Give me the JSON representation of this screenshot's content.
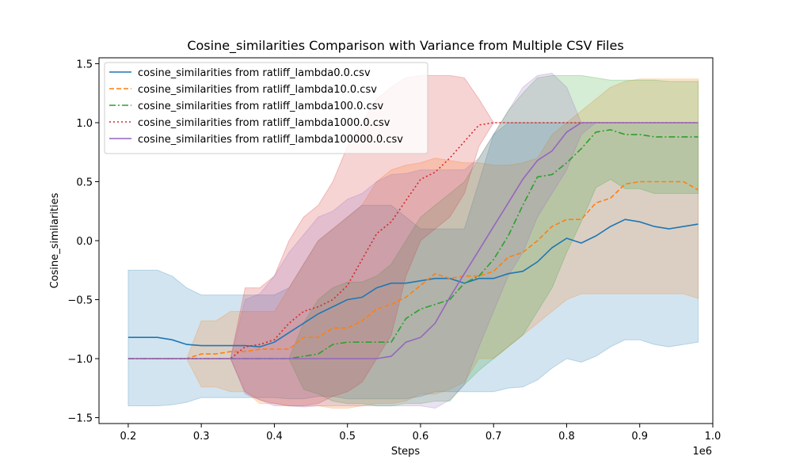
{
  "chart_data": {
    "type": "line",
    "title": "Cosine_similarities Comparison with Variance from Multiple CSV Files",
    "xlabel": "Steps",
    "ylabel": "Cosine_similarities",
    "x_offset_label": "1e6",
    "xlim": [
      0.16,
      1.0
    ],
    "ylim": [
      -1.55,
      1.55
    ],
    "x_ticks": [
      "0.2",
      "0.3",
      "0.4",
      "0.5",
      "0.6",
      "0.7",
      "0.8",
      "0.9",
      "1.0"
    ],
    "y_ticks": [
      "−1.5",
      "−1.0",
      "−0.5",
      "0.0",
      "0.5",
      "1.0",
      "1.5"
    ],
    "legend_position": "top-left",
    "grid": false,
    "x": [
      0.2,
      0.22,
      0.24,
      0.26,
      0.28,
      0.3,
      0.32,
      0.34,
      0.36,
      0.38,
      0.4,
      0.42,
      0.44,
      0.46,
      0.48,
      0.5,
      0.52,
      0.54,
      0.56,
      0.58,
      0.6,
      0.62,
      0.64,
      0.66,
      0.68,
      0.7,
      0.72,
      0.74,
      0.76,
      0.78,
      0.8,
      0.82,
      0.84,
      0.86,
      0.88,
      0.9,
      0.92,
      0.94,
      0.96,
      0.98
    ],
    "series": [
      {
        "name": "cosine_similarities from ratliff_lambda0.0.csv",
        "color": "#1f77b4",
        "dash": "solid",
        "values": [
          -0.82,
          -0.82,
          -0.82,
          -0.84,
          -0.88,
          -0.89,
          -0.89,
          -0.89,
          -0.89,
          -0.9,
          -0.86,
          -0.78,
          -0.7,
          -0.62,
          -0.56,
          -0.5,
          -0.48,
          -0.4,
          -0.36,
          -0.36,
          -0.34,
          -0.32,
          -0.32,
          -0.36,
          -0.32,
          -0.32,
          -0.28,
          -0.26,
          -0.18,
          -0.06,
          0.02,
          -0.02,
          0.04,
          0.12,
          0.18,
          0.16,
          0.12,
          0.1,
          0.12,
          0.14
        ],
        "upper": [
          -0.25,
          -0.25,
          -0.25,
          -0.3,
          -0.4,
          -0.46,
          -0.46,
          -0.46,
          -0.46,
          -0.46,
          -0.46,
          -0.4,
          -0.2,
          0.0,
          0.1,
          0.2,
          0.3,
          0.3,
          0.3,
          0.2,
          0.1,
          0.1,
          0.1,
          0.1,
          0.5,
          0.9,
          1.0,
          1.0,
          1.0,
          1.0,
          1.0,
          1.0,
          1.0,
          1.0,
          1.0,
          1.0,
          1.0,
          1.0,
          1.0,
          1.0
        ],
        "lower": [
          -1.4,
          -1.4,
          -1.4,
          -1.39,
          -1.37,
          -1.33,
          -1.33,
          -1.33,
          -1.33,
          -1.33,
          -1.33,
          -1.34,
          -1.34,
          -1.32,
          -1.32,
          -1.34,
          -1.34,
          -1.34,
          -1.34,
          -1.34,
          -1.32,
          -1.28,
          -1.28,
          -1.28,
          -1.28,
          -1.28,
          -1.25,
          -1.24,
          -1.18,
          -1.08,
          -1.0,
          -1.03,
          -0.98,
          -0.9,
          -0.84,
          -0.84,
          -0.88,
          -0.9,
          -0.88,
          -0.86
        ]
      },
      {
        "name": "cosine_similarities from ratliff_lambda10.0.csv",
        "color": "#ff7f0e",
        "dash": "dashed",
        "values": [
          -1.0,
          -1.0,
          -1.0,
          -1.0,
          -1.0,
          -0.96,
          -0.96,
          -0.94,
          -0.94,
          -0.92,
          -0.92,
          -0.92,
          -0.82,
          -0.82,
          -0.74,
          -0.74,
          -0.68,
          -0.58,
          -0.54,
          -0.48,
          -0.38,
          -0.28,
          -0.32,
          -0.3,
          -0.3,
          -0.26,
          -0.14,
          -0.1,
          0.0,
          0.12,
          0.18,
          0.18,
          0.32,
          0.36,
          0.48,
          0.5,
          0.5,
          0.5,
          0.5,
          0.43
        ],
        "upper": [
          -1.0,
          -1.0,
          -1.0,
          -1.0,
          -1.0,
          -0.68,
          -0.68,
          -0.6,
          -0.6,
          -0.6,
          -0.6,
          -0.4,
          -0.2,
          0.0,
          0.1,
          0.2,
          0.3,
          0.5,
          0.6,
          0.64,
          0.66,
          0.7,
          0.68,
          0.66,
          0.66,
          0.64,
          0.64,
          0.66,
          0.7,
          0.9,
          1.0,
          1.1,
          1.2,
          1.3,
          1.35,
          1.37,
          1.37,
          1.37,
          1.37,
          1.37
        ],
        "lower": [
          -1.0,
          -1.0,
          -1.0,
          -1.0,
          -1.0,
          -1.24,
          -1.24,
          -1.28,
          -1.28,
          -1.38,
          -1.38,
          -1.4,
          -1.4,
          -1.4,
          -1.42,
          -1.42,
          -1.4,
          -1.38,
          -1.38,
          -1.36,
          -1.3,
          -1.3,
          -1.26,
          -1.2,
          -1.0,
          -1.0,
          -0.9,
          -0.8,
          -0.7,
          -0.6,
          -0.5,
          -0.45,
          -0.45,
          -0.45,
          -0.45,
          -0.45,
          -0.45,
          -0.45,
          -0.45,
          -0.49
        ]
      },
      {
        "name": "cosine_similarities from ratliff_lambda100.0.csv",
        "color": "#2ca02c",
        "dash": "dashdot",
        "values": [
          -1.0,
          -1.0,
          -1.0,
          -1.0,
          -1.0,
          -1.0,
          -1.0,
          -1.0,
          -1.0,
          -1.0,
          -1.0,
          -1.0,
          -0.98,
          -0.96,
          -0.88,
          -0.86,
          -0.86,
          -0.86,
          -0.86,
          -0.66,
          -0.58,
          -0.54,
          -0.5,
          -0.36,
          -0.3,
          -0.16,
          0.04,
          0.3,
          0.54,
          0.56,
          0.66,
          0.78,
          0.92,
          0.94,
          0.9,
          0.9,
          0.88,
          0.88,
          0.88,
          0.88
        ],
        "upper": [
          -1.0,
          -1.0,
          -1.0,
          -1.0,
          -1.0,
          -1.0,
          -1.0,
          -1.0,
          -1.0,
          -1.0,
          -1.0,
          -1.0,
          -0.7,
          -0.5,
          -0.4,
          -0.35,
          -0.35,
          -0.3,
          -0.2,
          0.0,
          0.2,
          0.3,
          0.4,
          0.5,
          0.7,
          0.9,
          1.1,
          1.25,
          1.38,
          1.4,
          1.4,
          1.4,
          1.38,
          1.36,
          1.36,
          1.36,
          1.36,
          1.35,
          1.35,
          1.35
        ],
        "lower": [
          -1.0,
          -1.0,
          -1.0,
          -1.0,
          -1.0,
          -1.0,
          -1.0,
          -1.0,
          -1.0,
          -1.0,
          -1.0,
          -1.0,
          -1.26,
          -1.3,
          -1.36,
          -1.38,
          -1.38,
          -1.4,
          -1.4,
          -1.38,
          -1.38,
          -1.36,
          -1.36,
          -1.22,
          -1.1,
          -1.0,
          -0.9,
          -0.8,
          -0.6,
          -0.4,
          -0.1,
          0.16,
          0.45,
          0.52,
          0.44,
          0.44,
          0.4,
          0.4,
          0.4,
          0.4
        ]
      },
      {
        "name": "cosine_similarities from ratliff_lambda1000.0.csv",
        "color": "#d62728",
        "dash": "dotted",
        "values": [
          -1.0,
          -1.0,
          -1.0,
          -1.0,
          -1.0,
          -1.0,
          -1.0,
          -1.0,
          -0.9,
          -0.88,
          -0.84,
          -0.7,
          -0.6,
          -0.56,
          -0.5,
          -0.38,
          -0.16,
          0.06,
          0.16,
          0.34,
          0.52,
          0.58,
          0.7,
          0.84,
          0.98,
          1.0,
          1.0,
          1.0,
          1.0,
          1.0,
          1.0,
          1.0,
          1.0,
          1.0,
          1.0,
          1.0,
          1.0,
          1.0,
          1.0,
          1.0
        ],
        "upper": [
          -1.0,
          -1.0,
          -1.0,
          -1.0,
          -1.0,
          -1.0,
          -1.0,
          -1.0,
          -0.4,
          -0.4,
          -0.3,
          0.0,
          0.2,
          0.3,
          0.5,
          0.8,
          1.0,
          1.2,
          1.3,
          1.38,
          1.4,
          1.4,
          1.4,
          1.38,
          1.2,
          1.0,
          1.0,
          1.0,
          1.0,
          1.0,
          1.0,
          1.0,
          1.0,
          1.0,
          1.0,
          1.0,
          1.0,
          1.0,
          1.0,
          1.0
        ],
        "lower": [
          -1.0,
          -1.0,
          -1.0,
          -1.0,
          -1.0,
          -1.0,
          -1.0,
          -1.0,
          -1.28,
          -1.35,
          -1.38,
          -1.4,
          -1.4,
          -1.38,
          -1.32,
          -1.28,
          -1.2,
          -1.0,
          -0.8,
          -0.3,
          0.0,
          0.1,
          0.2,
          0.4,
          0.8,
          1.0,
          1.0,
          1.0,
          1.0,
          1.0,
          1.0,
          1.0,
          1.0,
          1.0,
          1.0,
          1.0,
          1.0,
          1.0,
          1.0,
          1.0
        ]
      },
      {
        "name": "cosine_similarities from ratliff_lambda100000.0.csv",
        "color": "#9467bd",
        "dash": "solid",
        "values": [
          -1.0,
          -1.0,
          -1.0,
          -1.0,
          -1.0,
          -1.0,
          -1.0,
          -1.0,
          -1.0,
          -1.0,
          -1.0,
          -1.0,
          -1.0,
          -1.0,
          -1.0,
          -1.0,
          -1.0,
          -1.0,
          -0.98,
          -0.86,
          -0.82,
          -0.7,
          -0.48,
          -0.28,
          -0.08,
          0.12,
          0.32,
          0.52,
          0.68,
          0.76,
          0.92,
          1.0,
          1.0,
          1.0,
          1.0,
          1.0,
          1.0,
          1.0,
          1.0,
          1.0
        ],
        "upper": [
          -1.0,
          -1.0,
          -1.0,
          -1.0,
          -1.0,
          -1.0,
          -1.0,
          -1.0,
          -0.5,
          -0.45,
          -0.3,
          -0.1,
          0.05,
          0.2,
          0.25,
          0.35,
          0.4,
          0.5,
          0.56,
          0.57,
          0.6,
          0.6,
          0.6,
          0.6,
          0.7,
          0.9,
          1.1,
          1.3,
          1.4,
          1.42,
          1.3,
          1.0,
          1.0,
          1.0,
          1.0,
          1.0,
          1.0,
          1.0,
          1.0,
          1.0
        ],
        "lower": [
          -1.0,
          -1.0,
          -1.0,
          -1.0,
          -1.0,
          -1.0,
          -1.0,
          -1.0,
          -1.3,
          -1.35,
          -1.4,
          -1.4,
          -1.41,
          -1.4,
          -1.4,
          -1.4,
          -1.4,
          -1.4,
          -1.4,
          -1.4,
          -1.4,
          -1.42,
          -1.35,
          -1.22,
          -0.9,
          -0.6,
          -0.3,
          -0.1,
          0.2,
          0.4,
          0.6,
          0.9,
          1.0,
          1.0,
          1.0,
          1.0,
          1.0,
          1.0,
          1.0,
          1.0
        ]
      }
    ]
  }
}
